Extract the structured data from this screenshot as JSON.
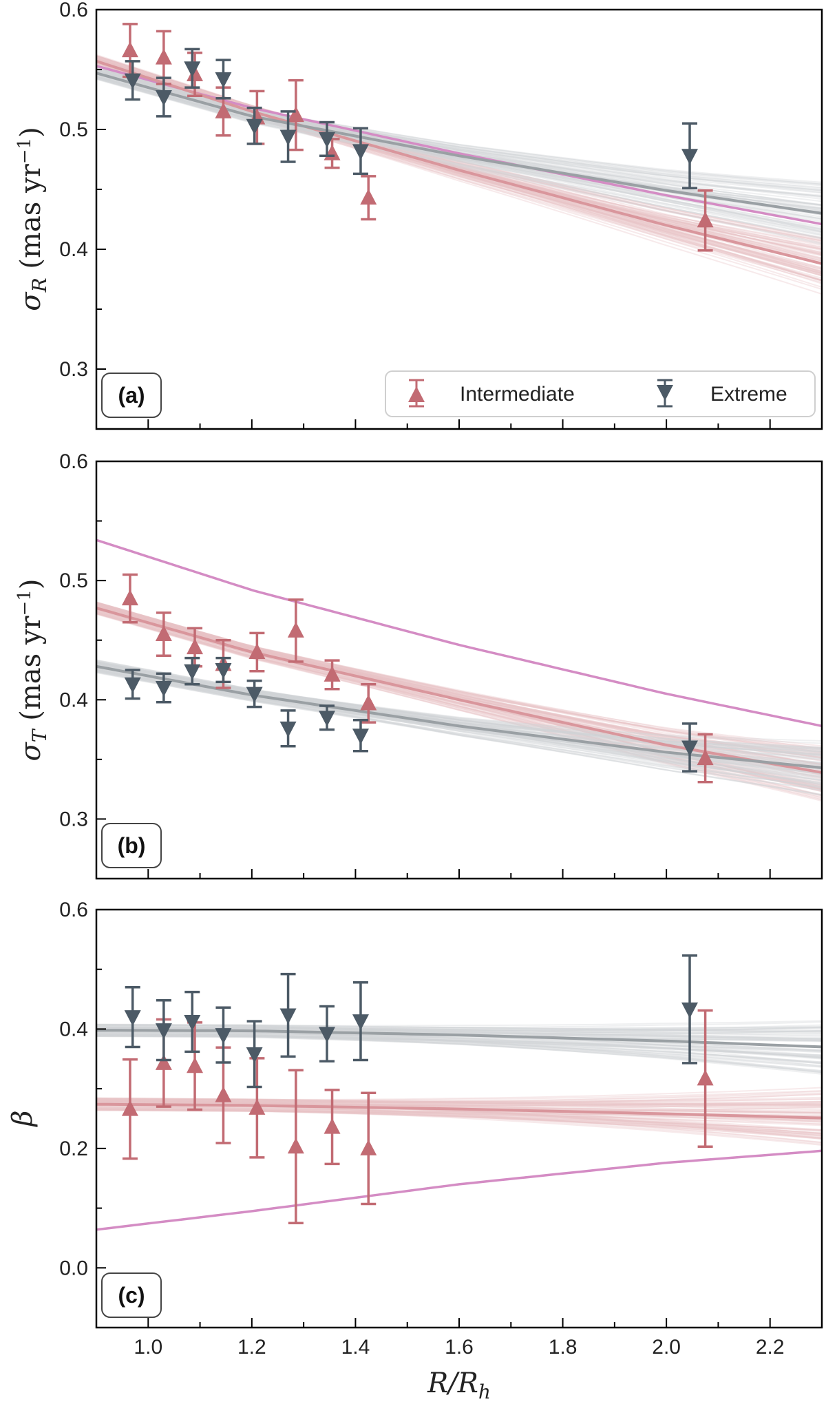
{
  "colors": {
    "intermediate": "#c26b73",
    "extreme": "#4c5a66",
    "model": "#d48cc4",
    "fit_intermediate": "#d9969c",
    "fit_extreme": "#9aa0a4",
    "ensemble_intermediate": "#e8c2c5",
    "ensemble_extreme": "#d0d4d7"
  },
  "legend": {
    "intermediate_label": "Intermediate",
    "extreme_label": "Extreme",
    "placement": "lower-right of panel (a)"
  },
  "xaxis": {
    "label_main": "R/R",
    "label_sub": "h",
    "ticks": [
      "1.0",
      "1.2",
      "1.4",
      "1.6",
      "1.8",
      "2.0",
      "2.2"
    ],
    "range": [
      0.9,
      2.3
    ]
  },
  "chart_data": [
    {
      "type": "scatter",
      "panel": "(a)",
      "ylabel_symbol": "σ",
      "ylabel_sub": "R",
      "ylabel_units": " (mas yr",
      "ylabel_exp": "−1",
      "ylabel_close": ")",
      "ylim": [
        0.25,
        0.6
      ],
      "yticks": [
        "0.3",
        "0.4",
        "0.5",
        "0.6"
      ],
      "grid": false,
      "series": [
        {
          "name": "Intermediate",
          "marker": "triangle-up",
          "x": [
            0.965,
            1.03,
            1.09,
            1.145,
            1.21,
            1.285,
            1.355,
            1.425,
            2.075
          ],
          "y": [
            0.566,
            0.56,
            0.546,
            0.515,
            0.51,
            0.512,
            0.48,
            0.443,
            0.424
          ],
          "err": [
            0.022,
            0.022,
            0.018,
            0.02,
            0.022,
            0.029,
            0.012,
            0.018,
            0.025
          ]
        },
        {
          "name": "Extreme",
          "marker": "triangle-down",
          "x": [
            0.97,
            1.03,
            1.085,
            1.145,
            1.205,
            1.27,
            1.345,
            1.41,
            2.045
          ],
          "y": [
            0.541,
            0.527,
            0.551,
            0.542,
            0.503,
            0.494,
            0.492,
            0.482,
            0.478
          ],
          "err": [
            0.016,
            0.016,
            0.016,
            0.016,
            0.015,
            0.021,
            0.014,
            0.019,
            0.027
          ]
        }
      ],
      "fits": [
        {
          "series": "model",
          "x": [
            0.9,
            1.2,
            1.6,
            2.0,
            2.3
          ],
          "y": [
            0.553,
            0.518,
            0.48,
            0.445,
            0.421
          ]
        },
        {
          "series": "Intermediate",
          "x": [
            0.9,
            1.2,
            1.6,
            2.0,
            2.3
          ],
          "y": [
            0.557,
            0.515,
            0.466,
            0.42,
            0.388
          ]
        },
        {
          "series": "Extreme",
          "x": [
            0.9,
            1.2,
            1.6,
            2.0,
            2.3
          ],
          "y": [
            0.547,
            0.511,
            0.478,
            0.449,
            0.43
          ]
        }
      ]
    },
    {
      "type": "scatter",
      "panel": "(b)",
      "ylabel_symbol": "σ",
      "ylabel_sub": "T",
      "ylabel_units": " (mas yr",
      "ylabel_exp": "−1",
      "ylabel_close": ")",
      "ylim": [
        0.25,
        0.6
      ],
      "yticks": [
        "0.3",
        "0.4",
        "0.5",
        "0.6"
      ],
      "grid": false,
      "series": [
        {
          "name": "Intermediate",
          "marker": "triangle-up",
          "x": [
            0.965,
            1.03,
            1.09,
            1.145,
            1.21,
            1.285,
            1.355,
            1.425,
            2.075
          ],
          "y": [
            0.485,
            0.455,
            0.444,
            0.43,
            0.44,
            0.458,
            0.421,
            0.397,
            0.351
          ],
          "err": [
            0.02,
            0.018,
            0.016,
            0.02,
            0.016,
            0.026,
            0.012,
            0.016,
            0.02
          ]
        },
        {
          "name": "Extreme",
          "marker": "triangle-down",
          "x": [
            0.97,
            1.03,
            1.085,
            1.145,
            1.205,
            1.27,
            1.345,
            1.41,
            2.045
          ],
          "y": [
            0.413,
            0.41,
            0.424,
            0.425,
            0.405,
            0.376,
            0.385,
            0.37,
            0.36
          ],
          "err": [
            0.012,
            0.012,
            0.011,
            0.01,
            0.011,
            0.015,
            0.01,
            0.013,
            0.02
          ]
        }
      ],
      "fits": [
        {
          "series": "model",
          "x": [
            0.9,
            1.2,
            1.6,
            2.0,
            2.3
          ],
          "y": [
            0.534,
            0.492,
            0.446,
            0.405,
            0.378
          ]
        },
        {
          "series": "Intermediate",
          "x": [
            0.9,
            1.2,
            1.6,
            2.0,
            2.3
          ],
          "y": [
            0.477,
            0.44,
            0.4,
            0.362,
            0.339
          ]
        },
        {
          "series": "Extreme",
          "x": [
            0.9,
            1.2,
            1.6,
            2.0,
            2.3
          ],
          "y": [
            0.428,
            0.404,
            0.378,
            0.356,
            0.343
          ]
        }
      ]
    },
    {
      "type": "scatter",
      "panel": "(c)",
      "ylabel_symbol": "β",
      "ylim": [
        -0.1,
        0.6
      ],
      "yticks": [
        "0.0",
        "0.2",
        "0.4",
        "0.6"
      ],
      "grid": false,
      "series": [
        {
          "name": "Intermediate",
          "marker": "triangle-up",
          "x": [
            0.965,
            1.03,
            1.09,
            1.145,
            1.21,
            1.285,
            1.355,
            1.425,
            2.075
          ],
          "y": [
            0.266,
            0.343,
            0.338,
            0.289,
            0.268,
            0.203,
            0.236,
            0.2,
            0.317
          ],
          "err": [
            0.083,
            0.073,
            0.073,
            0.08,
            0.083,
            0.128,
            0.062,
            0.093,
            0.114
          ]
        },
        {
          "name": "Extreme",
          "marker": "triangle-down",
          "x": [
            0.97,
            1.03,
            1.085,
            1.145,
            1.205,
            1.27,
            1.345,
            1.41,
            2.045
          ],
          "y": [
            0.42,
            0.398,
            0.412,
            0.39,
            0.358,
            0.423,
            0.392,
            0.413,
            0.433
          ],
          "err": [
            0.05,
            0.05,
            0.05,
            0.046,
            0.055,
            0.069,
            0.046,
            0.065,
            0.09
          ]
        }
      ],
      "fits": [
        {
          "series": "model",
          "x": [
            0.9,
            1.2,
            1.6,
            2.0,
            2.3
          ],
          "y": [
            0.064,
            0.095,
            0.14,
            0.176,
            0.196
          ]
        },
        {
          "series": "Intermediate",
          "x": [
            0.9,
            1.2,
            1.6,
            2.0,
            2.3
          ],
          "y": [
            0.274,
            0.272,
            0.266,
            0.258,
            0.251
          ]
        },
        {
          "series": "Extreme",
          "x": [
            0.9,
            1.2,
            1.6,
            2.0,
            2.3
          ],
          "y": [
            0.398,
            0.397,
            0.39,
            0.38,
            0.37
          ]
        }
      ]
    }
  ]
}
